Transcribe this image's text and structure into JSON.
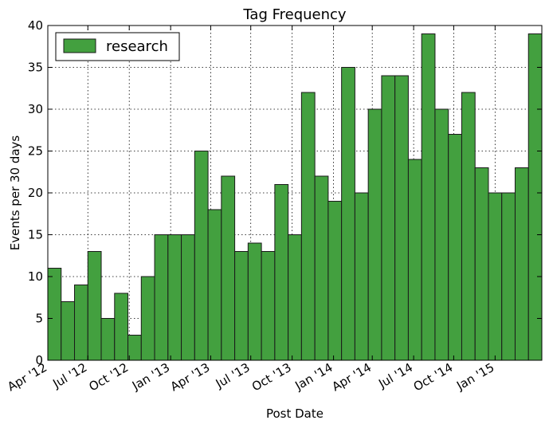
{
  "chart_data": {
    "type": "bar",
    "title": "Tag Frequency",
    "xlabel": "Post Date",
    "ylabel": "Events per 30 days",
    "ylim": [
      0,
      40
    ],
    "y_ticks": [
      0,
      5,
      10,
      15,
      20,
      25,
      30,
      35,
      40
    ],
    "grid": true,
    "legend_position": "top-left",
    "bar_color": "#43a03f",
    "series": [
      {
        "name": "research",
        "values": [
          11,
          7,
          9,
          13,
          5,
          8,
          3,
          10,
          15,
          15,
          15,
          25,
          18,
          22,
          13,
          14,
          13,
          21,
          15,
          32,
          22,
          19,
          35,
          20,
          30,
          34,
          34,
          24,
          39,
          30,
          27,
          32,
          23,
          20,
          20,
          23,
          39
        ]
      }
    ],
    "x_tick_labels": [
      {
        "label": "Apr '12",
        "bin": 0
      },
      {
        "label": "Jul '12",
        "bin": 3
      },
      {
        "label": "Oct '12",
        "bin": 6.1
      },
      {
        "label": "Jan '13",
        "bin": 9.2
      },
      {
        "label": "Apr '13",
        "bin": 12.2
      },
      {
        "label": "Jul '13",
        "bin": 15.2
      },
      {
        "label": "Oct '13",
        "bin": 18.3
      },
      {
        "label": "Jan '14",
        "bin": 21.4
      },
      {
        "label": "Apr '14",
        "bin": 24.3
      },
      {
        "label": "Jul '14",
        "bin": 27.4
      },
      {
        "label": "Oct '14",
        "bin": 30.4
      },
      {
        "label": "Jan '15",
        "bin": 33.5
      }
    ]
  }
}
